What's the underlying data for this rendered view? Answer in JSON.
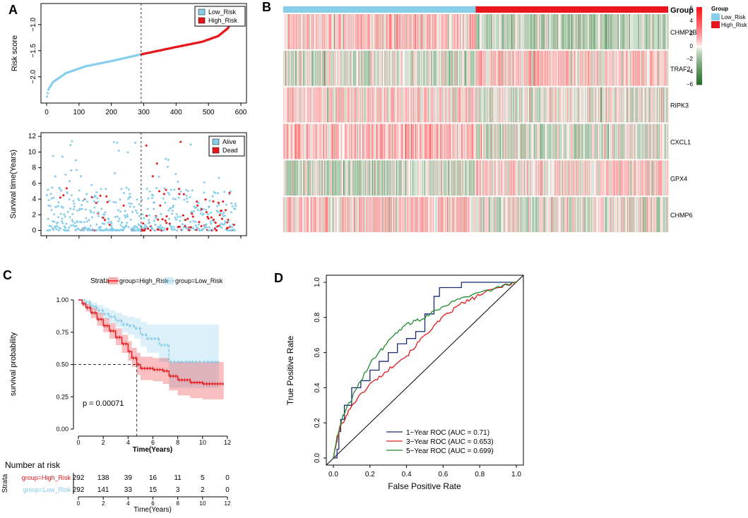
{
  "panel_letters": {
    "a": "A",
    "b": "B",
    "c": "C",
    "d": "D"
  },
  "colors": {
    "low": "#87CEEB",
    "high": "#E8161B",
    "km_high": "#E8161B",
    "km_low": "#7FC8E6",
    "roc1": "#1B2A78",
    "roc3": "#E41A1C",
    "roc5": "#1F8A2E",
    "heat_pos": "#E8161B",
    "heat_neg": "#1F6B1F"
  },
  "chart_data": [
    {
      "id": "A_top",
      "type": "scatter",
      "title": "",
      "xlabel": "",
      "ylabel": "Risk score",
      "xlim": [
        0,
        600
      ],
      "ylim": [
        -2.45,
        -0.65
      ],
      "x_ticks": [
        "0",
        "100",
        "200",
        "300",
        "400",
        "500",
        "600"
      ],
      "y_ticks": [
        "-2.0",
        "-1.5",
        "-1.0"
      ],
      "cutoff_x": 292,
      "n": 584,
      "series": [
        {
          "name": "Low_Risk",
          "x_range": [
            1,
            292
          ],
          "y_keypoints": [
            [
              1,
              -2.38
            ],
            [
              5,
              -2.25
            ],
            [
              20,
              -2.1
            ],
            [
              60,
              -1.93
            ],
            [
              120,
              -1.8
            ],
            [
              200,
              -1.7
            ],
            [
              292,
              -1.57
            ]
          ]
        },
        {
          "name": "High_Risk",
          "x_range": [
            293,
            584
          ],
          "y_keypoints": [
            [
              293,
              -1.57
            ],
            [
              400,
              -1.43
            ],
            [
              480,
              -1.33
            ],
            [
              530,
              -1.22
            ],
            [
              560,
              -1.07
            ],
            [
              575,
              -0.9
            ],
            [
              584,
              -0.75
            ]
          ]
        }
      ],
      "legend": {
        "placement": "top-right",
        "entries": [
          "Low_Risk",
          "High_Risk"
        ]
      }
    },
    {
      "id": "A_bottom",
      "type": "scatter",
      "xlabel": "",
      "ylabel": "Survival time(Years)",
      "xlim": [
        0,
        600
      ],
      "ylim": [
        -0.4,
        12.2
      ],
      "y_ticks": [
        "0",
        "2",
        "4",
        "6",
        "8",
        "10",
        "12"
      ],
      "cutoff_x": 292,
      "n_points": 584,
      "series": [
        {
          "name": "Alive",
          "approx_count": 480
        },
        {
          "name": "Dead",
          "approx_count": 104
        }
      ],
      "legend": {
        "placement": "top-right",
        "entries": [
          "Alive",
          "Dead"
        ]
      }
    },
    {
      "id": "B",
      "type": "heatmap",
      "rows": [
        "CHMP2B",
        "TRAF2",
        "RIPK3",
        "CXCL1",
        "GPX4",
        "CHMP6"
      ],
      "group_bar_label": "Group",
      "groups": [
        {
          "name": "Low_Risk",
          "count": 292
        },
        {
          "name": "High_Risk",
          "count": 292
        }
      ],
      "scale": {
        "min": -6,
        "max": 6,
        "ticks": [
          "6",
          "4",
          "2",
          "0",
          "−2",
          "−4",
          "−6"
        ]
      },
      "legend_title": "Group",
      "legend_entries": [
        "Low_Risk",
        "High_Risk"
      ],
      "row_means_low_high": [
        [
          0.9,
          -1.2
        ],
        [
          -0.6,
          0.6
        ],
        [
          0.4,
          -0.3
        ],
        [
          1.0,
          -0.6
        ],
        [
          -0.8,
          0.4
        ],
        [
          0.7,
          -0.4
        ]
      ]
    },
    {
      "id": "C",
      "type": "line",
      "ylabel": "survival probability",
      "xlabel": "Time(Years)",
      "xlim": [
        0,
        12
      ],
      "ylim": [
        0,
        1
      ],
      "x_ticks": [
        "0",
        "2",
        "4",
        "6",
        "8",
        "10",
        "12"
      ],
      "y_ticks": [
        "0.00",
        "0.25",
        "0.50",
        "0.75",
        "1.00"
      ],
      "strata_label": "Strata",
      "p_value_text": "p = 0.00071",
      "median_line": {
        "x": 4.7,
        "y": 0.5
      },
      "series": [
        {
          "name": "group=High_Risk",
          "x": [
            0,
            0.3,
            0.6,
            1.0,
            1.5,
            2.0,
            2.5,
            3.0,
            3.5,
            4.0,
            4.3,
            4.7,
            5.0,
            6.0,
            6.8,
            7.3,
            8.0,
            9.0,
            10.0,
            11.7
          ],
          "y": [
            1.0,
            0.97,
            0.94,
            0.9,
            0.85,
            0.8,
            0.76,
            0.71,
            0.66,
            0.6,
            0.55,
            0.5,
            0.47,
            0.46,
            0.45,
            0.41,
            0.38,
            0.36,
            0.35,
            0.35
          ],
          "ci_upper": [
            1.0,
            0.99,
            0.97,
            0.94,
            0.9,
            0.86,
            0.82,
            0.78,
            0.73,
            0.68,
            0.63,
            0.59,
            0.56,
            0.55,
            0.55,
            0.52,
            0.52,
            0.52,
            0.52,
            0.52
          ],
          "ci_lower": [
            1.0,
            0.95,
            0.91,
            0.86,
            0.8,
            0.75,
            0.7,
            0.65,
            0.59,
            0.53,
            0.48,
            0.42,
            0.38,
            0.37,
            0.35,
            0.3,
            0.26,
            0.24,
            0.23,
            0.23
          ]
        },
        {
          "name": "group=Low_Risk",
          "x": [
            0,
            0.5,
            1.0,
            1.5,
            2.0,
            2.5,
            3.0,
            3.5,
            4.0,
            4.5,
            5.0,
            5.5,
            6.0,
            6.5,
            7.3,
            8.5,
            10.0,
            11.3
          ],
          "y": [
            1.0,
            0.98,
            0.95,
            0.92,
            0.89,
            0.87,
            0.84,
            0.81,
            0.8,
            0.78,
            0.73,
            0.7,
            0.7,
            0.65,
            0.52,
            0.52,
            0.52,
            0.52
          ],
          "ci_upper": [
            1.0,
            1.0,
            0.98,
            0.96,
            0.94,
            0.92,
            0.9,
            0.88,
            0.87,
            0.86,
            0.83,
            0.81,
            0.81,
            0.81,
            0.81,
            0.81,
            0.81,
            0.81
          ],
          "ci_lower": [
            1.0,
            0.96,
            0.92,
            0.89,
            0.85,
            0.82,
            0.79,
            0.75,
            0.73,
            0.7,
            0.64,
            0.59,
            0.59,
            0.52,
            0.32,
            0.32,
            0.32,
            0.32
          ]
        }
      ],
      "legend_entries": [
        "group=High_Risk",
        "group=Low_Risk"
      ]
    },
    {
      "id": "C_risk_table",
      "type": "table",
      "title": "Number at risk",
      "row_axis_label": "Strata",
      "xlabel": "Time(Years)",
      "x_ticks": [
        "0",
        "2",
        "4",
        "6",
        "8",
        "10",
        "12"
      ],
      "rows": [
        {
          "label": "group=High_Risk",
          "values": [
            "292",
            "138",
            "39",
            "16",
            "11",
            "5",
            "0"
          ]
        },
        {
          "label": "group=Low_Risk",
          "values": [
            "292",
            "141",
            "33",
            "15",
            "3",
            "2",
            "0"
          ]
        }
      ]
    },
    {
      "id": "D",
      "type": "line",
      "xlabel": "False Positive Rate",
      "ylabel": "True Positive Rate",
      "xlim": [
        0,
        1
      ],
      "ylim": [
        0,
        1
      ],
      "x_ticks": [
        "0.0",
        "0.2",
        "0.4",
        "0.6",
        "0.8",
        "1.0"
      ],
      "y_ticks": [
        "0.0",
        "0.2",
        "0.4",
        "0.6",
        "0.8",
        "1.0"
      ],
      "series": [
        {
          "name": "1−Year ROC (AUC = 0.71)",
          "x": [
            0,
            0.02,
            0.03,
            0.04,
            0.06,
            0.1,
            0.15,
            0.2,
            0.25,
            0.3,
            0.35,
            0.4,
            0.45,
            0.5,
            0.55,
            0.58,
            0.62,
            0.7,
            0.8,
            0.9,
            1.0
          ],
          "y": [
            0,
            0.05,
            0.15,
            0.22,
            0.3,
            0.4,
            0.44,
            0.5,
            0.55,
            0.6,
            0.65,
            0.68,
            0.72,
            0.82,
            0.92,
            0.97,
            0.97,
            1.0,
            1.0,
            1.0,
            1.0
          ]
        },
        {
          "name": "3−Year ROC (AUC = 0.653)",
          "x": [
            0,
            0.02,
            0.04,
            0.07,
            0.1,
            0.15,
            0.2,
            0.25,
            0.3,
            0.35,
            0.4,
            0.45,
            0.5,
            0.55,
            0.6,
            0.65,
            0.7,
            0.75,
            0.8,
            0.88,
            0.95,
            1.0
          ],
          "y": [
            0,
            0.1,
            0.18,
            0.24,
            0.3,
            0.36,
            0.42,
            0.46,
            0.5,
            0.55,
            0.58,
            0.64,
            0.7,
            0.75,
            0.8,
            0.84,
            0.88,
            0.9,
            0.93,
            0.96,
            0.99,
            1.0
          ]
        },
        {
          "name": "5−Year ROC (AUC = 0.699)",
          "x": [
            0,
            0.02,
            0.04,
            0.06,
            0.1,
            0.15,
            0.2,
            0.25,
            0.3,
            0.35,
            0.4,
            0.45,
            0.5,
            0.55,
            0.6,
            0.65,
            0.7,
            0.8,
            0.9,
            0.97,
            1.0
          ],
          "y": [
            0,
            0.12,
            0.2,
            0.26,
            0.34,
            0.44,
            0.54,
            0.6,
            0.66,
            0.72,
            0.76,
            0.78,
            0.8,
            0.84,
            0.86,
            0.89,
            0.91,
            0.94,
            0.97,
            0.99,
            1.0
          ]
        }
      ],
      "legend": {
        "placement": "bottom-right"
      }
    }
  ]
}
